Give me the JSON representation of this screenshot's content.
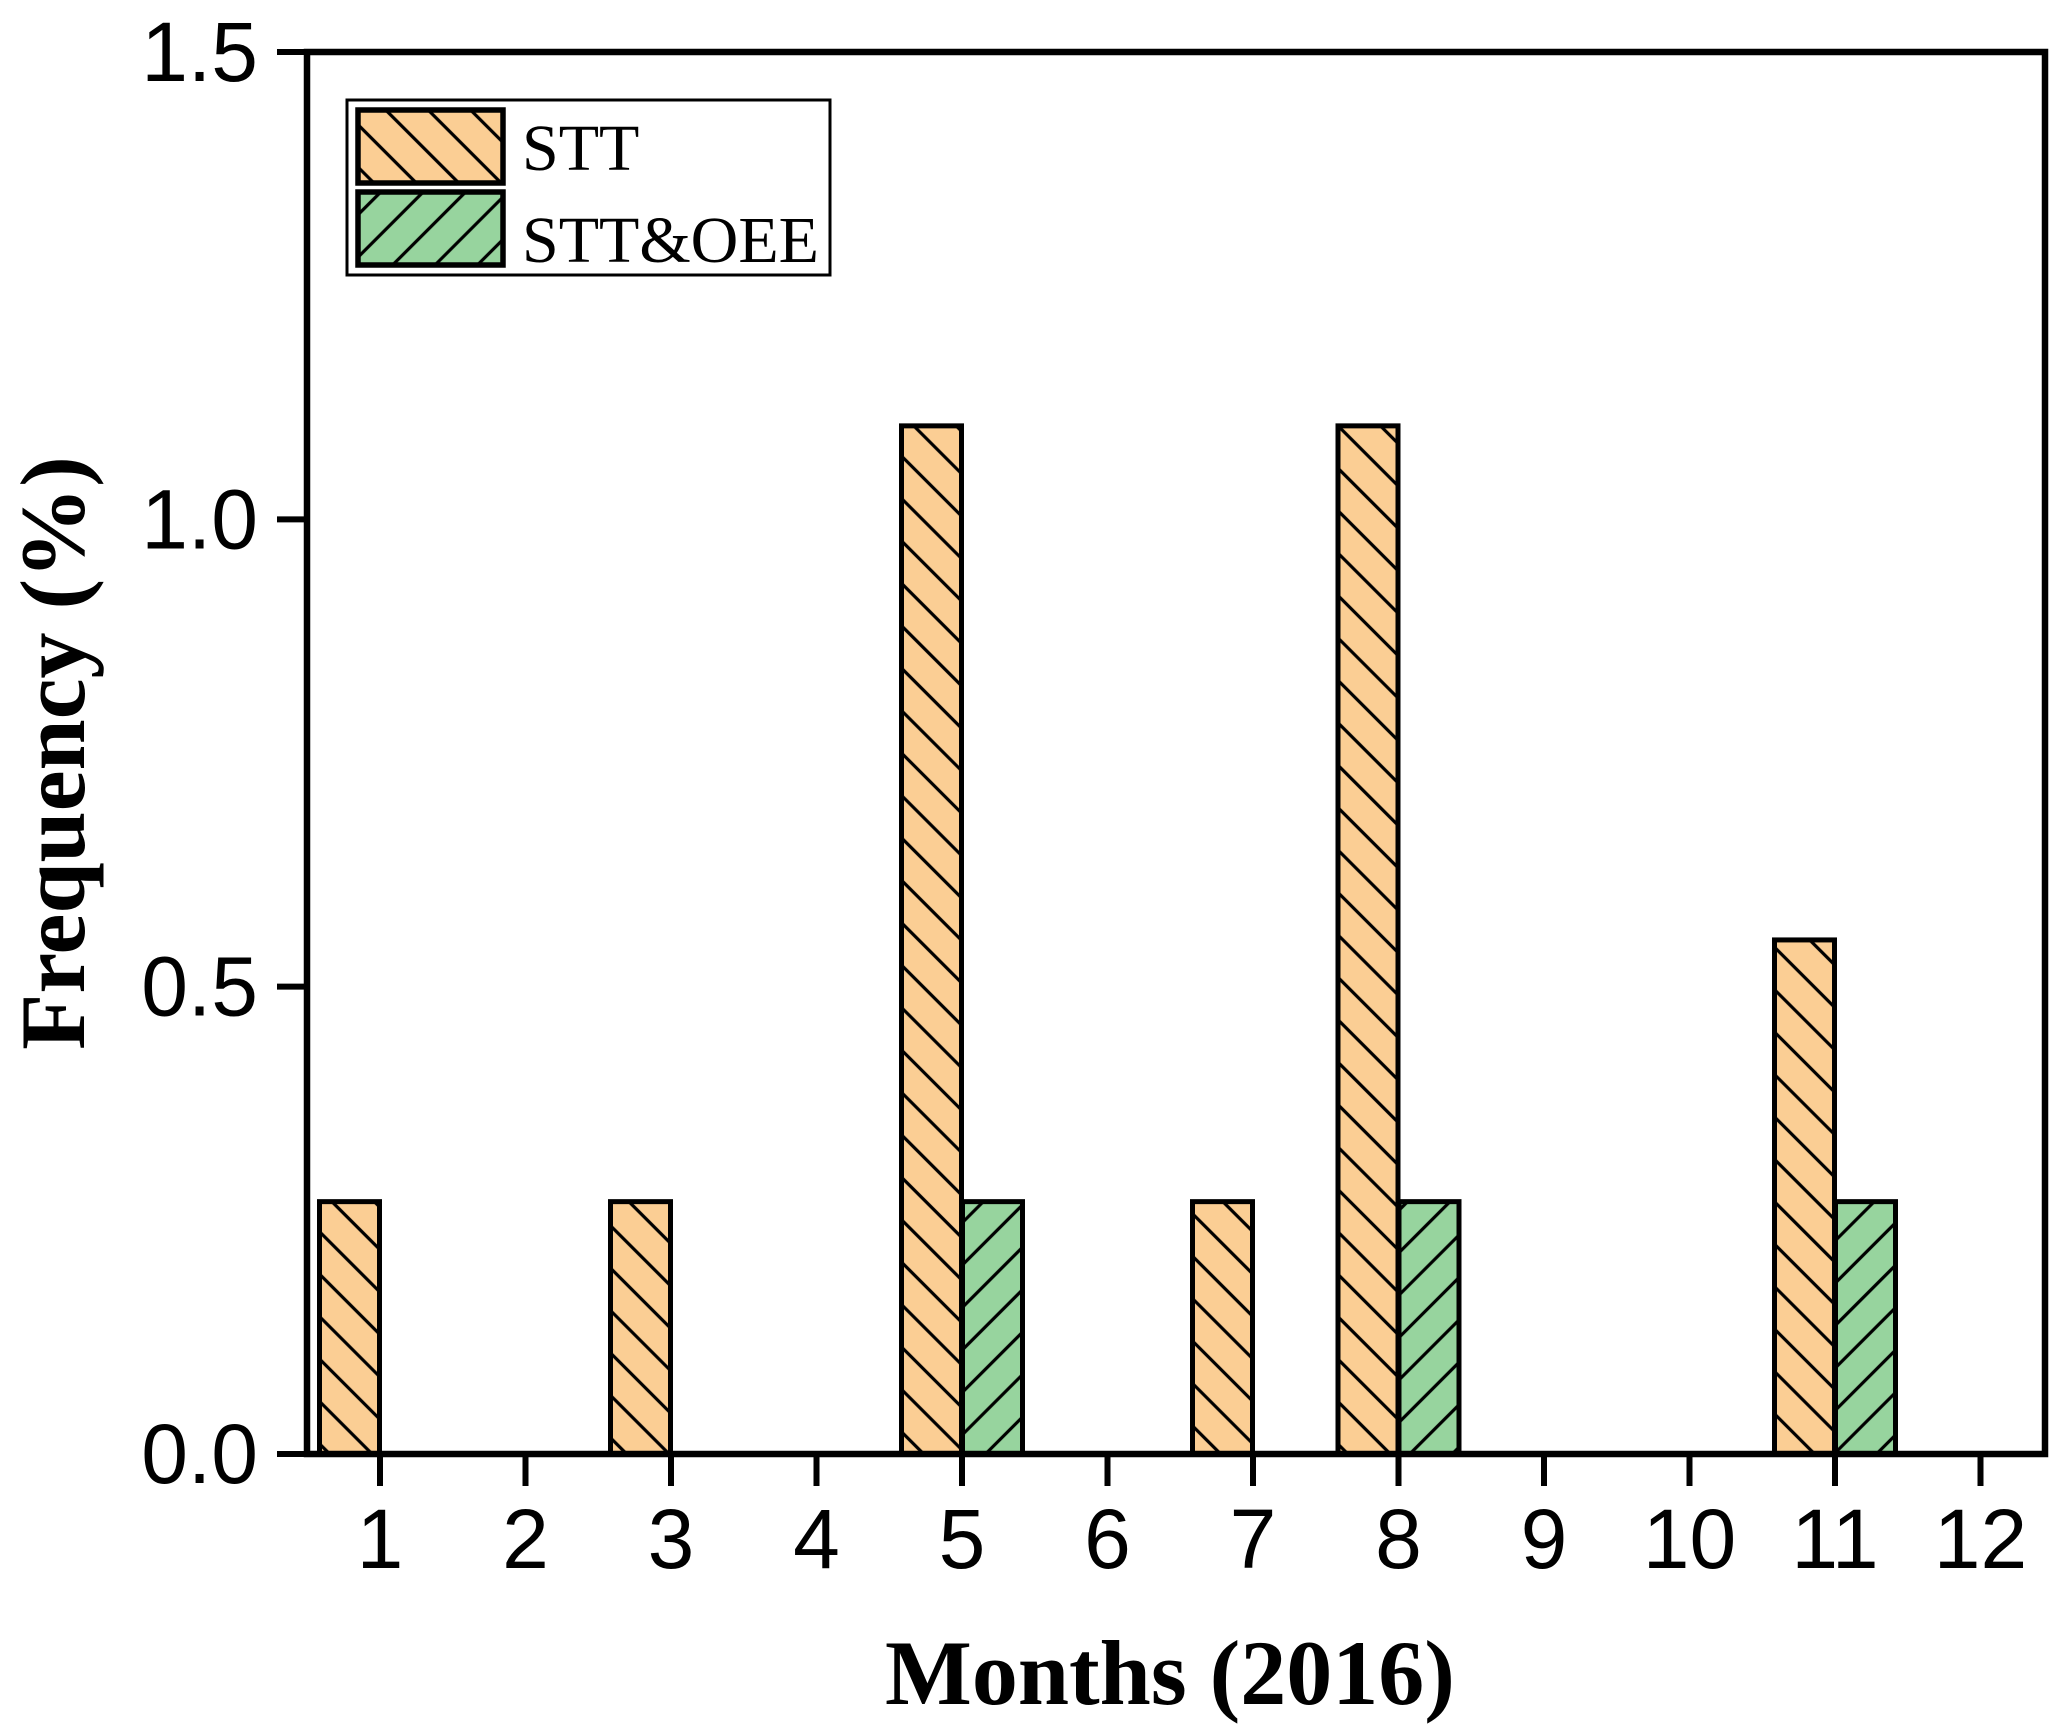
{
  "figure": {
    "background": "#ffffff",
    "frame_color": "#000000"
  },
  "chart_data": {
    "type": "bar",
    "title": "",
    "xlabel": "Months (2016)",
    "ylabel": "Frequency (%)",
    "categories": [
      "1",
      "2",
      "3",
      "4",
      "5",
      "6",
      "7",
      "8",
      "9",
      "10",
      "11",
      "12"
    ],
    "series": [
      {
        "name": "STT",
        "color": "#FBCE94",
        "hatch": "\\",
        "values": [
          0.27,
          0,
          0.27,
          0,
          1.1,
          0,
          0.27,
          1.1,
          0,
          0,
          0.55,
          0
        ]
      },
      {
        "name": "STT&OEE",
        "color": "#97D49E",
        "hatch": "/",
        "values": [
          0,
          0,
          0,
          0,
          0.27,
          0,
          0,
          0.27,
          0,
          0,
          0.27,
          0
        ]
      }
    ],
    "ylim": [
      0,
      1.5
    ],
    "yticks": [
      0,
      0.5,
      1.0,
      1.5
    ],
    "ytick_labels": [
      "0.0",
      "0.5",
      "1.0",
      "1.5"
    ],
    "legend_position": "top-left",
    "grid": false,
    "bar_outline_color": "#000000"
  }
}
